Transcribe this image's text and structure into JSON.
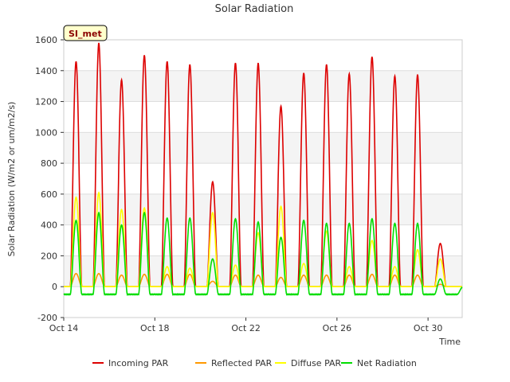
{
  "chart_data": {
    "type": "line",
    "title": "Solar Radiation",
    "xlabel": "Time",
    "ylabel": "Solar Radiation (W/m2 or um/m2/s)",
    "site_label": "SI_met",
    "ylim": [
      -200,
      1600
    ],
    "y_ticks": [
      -200,
      0,
      200,
      400,
      600,
      800,
      1000,
      1200,
      1400,
      1600
    ],
    "xlim": [
      "2023-10-14",
      "2023-10-31T12:00"
    ],
    "x_ticks": [
      {
        "date": "2023-10-14",
        "label": "Oct 14"
      },
      {
        "date": "2023-10-18",
        "label": "Oct 18"
      },
      {
        "date": "2023-10-22",
        "label": "Oct 22"
      },
      {
        "date": "2023-10-26",
        "label": "Oct 26"
      },
      {
        "date": "2023-10-30",
        "label": "Oct 30"
      }
    ],
    "grid": "horizontal bands",
    "legend_position": "bottom",
    "days": [
      "2023-10-14",
      "2023-10-15",
      "2023-10-16",
      "2023-10-17",
      "2023-10-18",
      "2023-10-19",
      "2023-10-20",
      "2023-10-21",
      "2023-10-22",
      "2023-10-23",
      "2023-10-24",
      "2023-10-25",
      "2023-10-26",
      "2023-10-27",
      "2023-10-28",
      "2023-10-29",
      "2023-10-30",
      "2023-10-31"
    ],
    "series": [
      {
        "name": "Incoming PAR",
        "color": "#dd0000",
        "daily_peak": [
          1460,
          1580,
          1340,
          1500,
          1460,
          1440,
          680,
          1450,
          1450,
          1170,
          1385,
          1440,
          1380,
          1490,
          1365,
          1375,
          280,
          0
        ]
      },
      {
        "name": "Reflected PAR",
        "color": "#ff9900",
        "daily_peak": [
          85,
          85,
          75,
          80,
          80,
          80,
          35,
          75,
          75,
          60,
          75,
          75,
          75,
          80,
          75,
          75,
          15,
          0
        ]
      },
      {
        "name": "Diffuse PAR",
        "color": "#ffff00",
        "daily_peak": [
          580,
          610,
          500,
          510,
          130,
          120,
          480,
          140,
          350,
          520,
          150,
          360,
          130,
          300,
          130,
          240,
          180,
          0
        ]
      },
      {
        "name": "Net Radiation",
        "color": "#00dd00",
        "daily_peak": [
          430,
          480,
          400,
          480,
          445,
          445,
          180,
          440,
          420,
          320,
          430,
          410,
          410,
          440,
          410,
          410,
          50,
          0
        ],
        "night_value": -50
      }
    ]
  }
}
